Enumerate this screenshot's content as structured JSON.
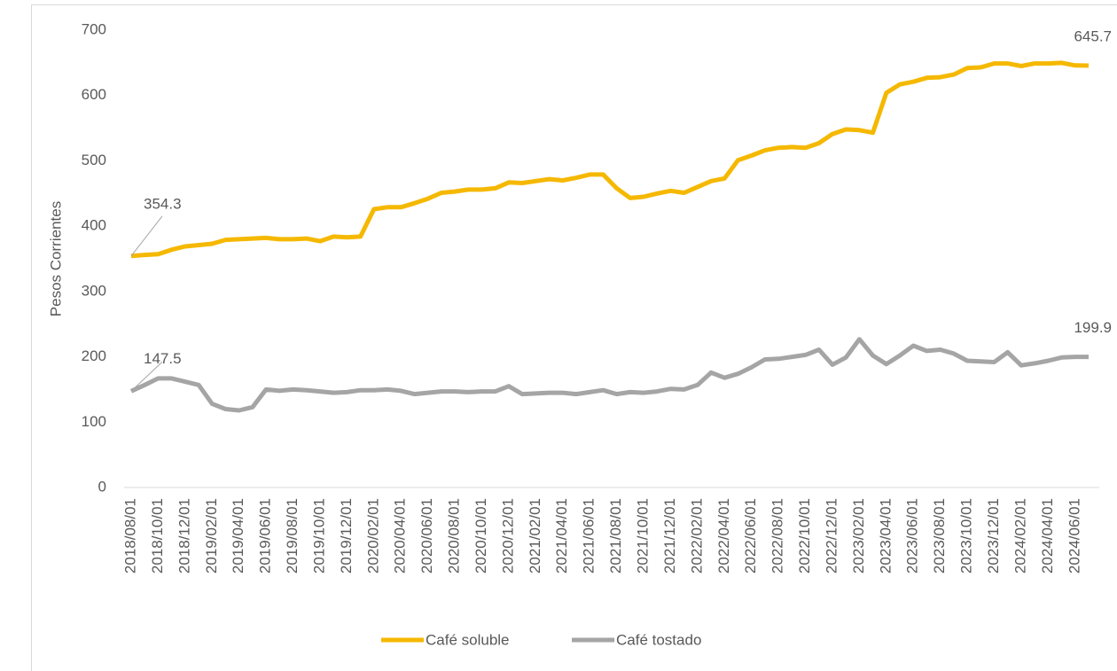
{
  "chart_data": {
    "type": "line",
    "y_label": "Pesos Corrientes",
    "categories": [
      "2018/08/01",
      null,
      "2018/10/01",
      null,
      "2018/12/01",
      null,
      "2019/02/01",
      null,
      "2019/04/01",
      null,
      "2019/06/01",
      null,
      "2019/08/01",
      null,
      "2019/10/01",
      null,
      "2019/12/01",
      null,
      "2020/02/01",
      null,
      "2020/04/01",
      null,
      "2020/06/01",
      null,
      "2020/08/01",
      null,
      "2020/10/01",
      null,
      "2020/12/01",
      null,
      "2021/02/01",
      null,
      "2021/04/01",
      null,
      "2021/06/01",
      null,
      "2021/08/01",
      null,
      "2021/10/01",
      null,
      "2021/12/01",
      null,
      "2022/02/01",
      null,
      "2022/04/01",
      null,
      "2022/06/01",
      null,
      "2022/08/01",
      null,
      "2022/10/01",
      null,
      "2022/12/01",
      null,
      "2023/02/01",
      null,
      "2023/04/01",
      null,
      "2023/06/01",
      null,
      "2023/08/01",
      null,
      "2023/10/01",
      null,
      "2023/12/01",
      null,
      "2024/02/01",
      null,
      "2024/04/01",
      null,
      "2024/06/01",
      null
    ],
    "series": [
      {
        "name": "Café soluble",
        "color": "#f5b800",
        "values": [
          354.3,
          356,
          357,
          364,
          369,
          371,
          373,
          379,
          380,
          381,
          382,
          380,
          380,
          381,
          377,
          384,
          383,
          384,
          426,
          429,
          429,
          435,
          442,
          451,
          453,
          456,
          456,
          458,
          467,
          466,
          469,
          472,
          470,
          474,
          479,
          479,
          458,
          443,
          445,
          450,
          454,
          451,
          460,
          469,
          473,
          501,
          508,
          516,
          520,
          521,
          520,
          527,
          541,
          548,
          547,
          543,
          604,
          617,
          621,
          627,
          628,
          632,
          642,
          643,
          649,
          649,
          645,
          649,
          649,
          650,
          646,
          645.7
        ]
      },
      {
        "name": "Café tostado",
        "color": "#a5a5a5",
        "values": [
          147.5,
          157,
          167,
          167,
          162,
          157,
          128,
          120,
          118,
          123,
          150,
          148,
          150,
          149,
          147,
          145,
          146,
          149,
          149,
          150,
          148,
          143,
          145,
          147,
          147,
          146,
          147,
          147,
          155,
          143,
          144,
          145,
          145,
          143,
          146,
          149,
          143,
          146,
          145,
          147,
          151,
          150,
          157,
          176,
          168,
          174,
          184,
          196,
          197,
          200,
          203,
          211,
          188,
          199,
          227,
          202,
          189,
          202,
          217,
          209,
          211,
          205,
          194,
          193,
          192,
          207,
          187,
          190,
          194,
          199,
          200,
          199.9
        ]
      }
    ],
    "ylim": [
      0,
      700
    ],
    "yticks": [
      0,
      100,
      200,
      300,
      400,
      500,
      600,
      700
    ],
    "grid": false,
    "legend": "bottom"
  }
}
